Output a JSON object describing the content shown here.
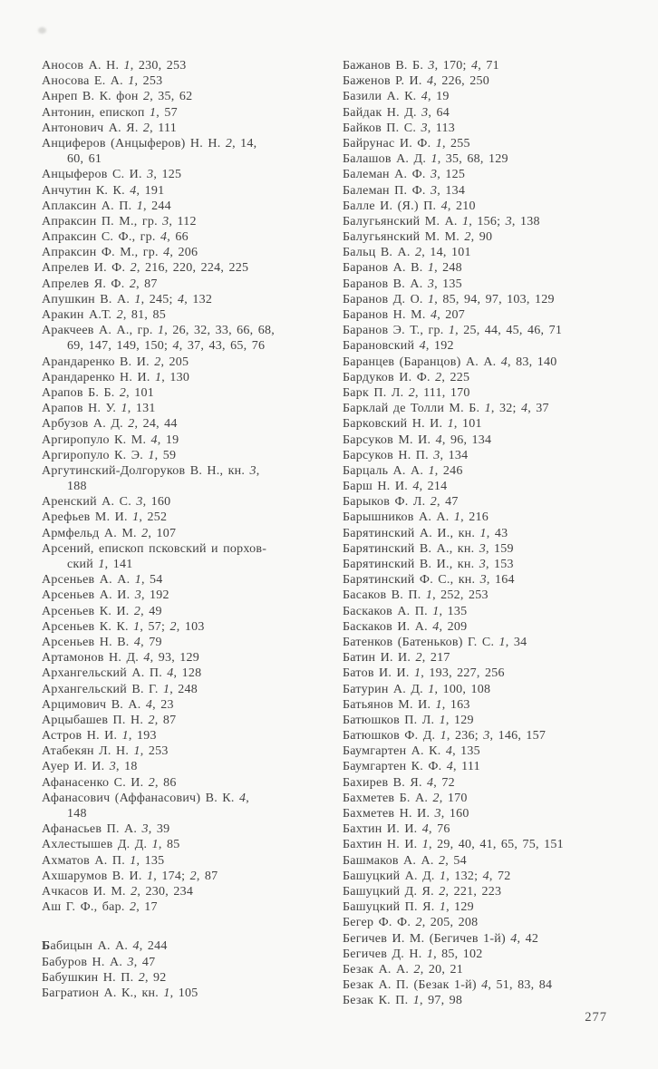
{
  "page": {
    "number": "277",
    "background_color": "#f9f9f7",
    "text_color": "#414141"
  },
  "index": {
    "left_column": [
      "Аносов А. Н. *1*, 230, 253",
      "Аносова Е. А. *1*, 253",
      "Анреп В. К. фон *2*, 35, 62",
      "Антонин, епископ *1*, 57",
      "Антонович А. Я. *2*, 111",
      "Анциферов (Анцыферов) Н. Н. *2*, 14,",
      {
        "t": "60, 61",
        "indent": true
      },
      "Анцыферов С. И. *3*, 125",
      "Анчутин К. К. *4*, 191",
      "Аплаксин А. П. *1*, 244",
      "Апраксин П. М., гр. *3*, 112",
      "Апраксин С. Ф., гр. *4*, 66",
      "Апраксин Ф. М., гр. *4*, 206",
      "Апрелев И. Ф. *2*, 216, 220, 224, 225",
      "Апрелев Я. Ф. *2*, 87",
      "Апушкин В. А. *1*, 245; *4*, 132",
      "Аракин А.Т. *2*, 81, 85",
      "Аракчеев А. А., гр. *1*, 26, 32, 33, 66, 68,",
      {
        "t": "69, 147, 149, 150; *4*, 37, 43, 65, 76",
        "indent": true
      },
      "Арандаренко В. И. *2*, 205",
      "Арандаренко Н. И. *1*, 130",
      "Арапов Б. Б. *2*, 101",
      "Арапов Н. У. *1*, 131",
      "Арбузов А. Д. *2*, 24, 44",
      "Аргиропуло К. М. *4*, 19",
      "Аргиропуло К. Э. *1*, 59",
      "Аргутинский-Долгоруков В. Н., кн. *3*,",
      {
        "t": "188",
        "indent": true
      },
      "Аренский А. С. *3*, 160",
      "Арефьев М. И. *1*, 252",
      "Армфельд А. М. *2*, 107",
      "Арсений, епископ псковский и порхов-",
      {
        "t": "ский *1*, 141",
        "indent": true
      },
      "Арсеньев А. А. *1*, 54",
      "Арсеньев А. И. *3*, 192",
      "Арсеньев К. И. *2*, 49",
      "Арсеньев К. К. *1*, 57; *2*, 103",
      "Арсеньев Н. В. *4*, 79",
      "Артамонов Н. Д. *4*, 93, 129",
      "Архангельский А. П. *4*, 128",
      "Архангельский В. Г. *1*, 248",
      "Арцимович В. А. *4*, 23",
      "Арцыбашев П. Н. *2*, 87",
      "Астров Н. И. *1*, 193",
      "Атабекян Л. Н. *1*, 253",
      "Ауер И. И. *3*, 18",
      "Афанасенко С. И. *2*, 86",
      "Афанасович (Аффанасович) В. К. *4*,",
      {
        "t": "148",
        "indent": true
      },
      "Афанасьев П. А. *3*, 39",
      "Ахлестышев Д. Д. *1*, 85",
      "Ахматов А. П. *1*, 135",
      "Ахшарумов В. И. *1*, 174; *2*, 87",
      "Ачкасов И. М. *2*, 230, 234",
      "Аш Г. Ф., бар. *2*, 17",
      {
        "gap": true
      },
      {
        "t": "Бабицын А. А. *4*, 244",
        "boldFirst": true
      },
      "Бабуров Н. А. *3*, 47",
      "Бабушкин Н. П. *2*, 92",
      "Багратион А. К., кн. *1*, 105"
    ],
    "right_column": [
      "Бажанов В. Б. *3*, 170; *4*, 71",
      "Баженов Р. И. *4*, 226, 250",
      "Базили А. К. *4*, 19",
      "Байдак Н. Д. *3*, 64",
      "Байков П. С. *3*, 113",
      "Байрунас И. Ф. *1*, 255",
      "Балашов А. Д. *1*, 35, 68, 129",
      "Балеман А. Ф. *3*, 125",
      "Балеман П. Ф. *3*, 134",
      "Балле И. (Я.) П. *4*, 210",
      "Балугьянский М. А. *1*, 156; *3*, 138",
      "Балугьянский М. М. *2*, 90",
      "Бальц В. А. *2*, 14, 101",
      "Баранов А. В. *1*, 248",
      "Баранов В. А. *3*, 135",
      "Баранов Д. О. *1*, 85, 94, 97, 103, 129",
      "Баранов Н. М. *4*, 207",
      "Баранов Э. Т., гр. *1*, 25, 44, 45, 46, 71",
      "Барановский *4*, 192",
      "Баранцев (Баранцов) А. А. *4*, 83, 140",
      "Бардуков И. Ф. *2*, 225",
      "Барк П. Л. *2*, 111, 170",
      "Барклай де Толли М. Б. *1*, 32; *4*, 37",
      "Барковский Н. И. *1*, 101",
      "Барсуков М. И. *4*, 96, 134",
      "Барсуков Н. П. *3*, 134",
      "Барцаль А. А. *1*, 246",
      "Барш Н. И. *4*, 214",
      "Барыков Ф. Л. *2*, 47",
      "Барышников А. А. *1*, 216",
      "Барятинский А. И., кн. *1*, 43",
      "Барятинский В. А., кн. *3*, 159",
      "Барятинский В. И., кн. *3*, 153",
      "Барятинский Ф. С., кн. *3*, 164",
      "Басаков В. П. *1*, 252, 253",
      "Баскаков А. П. *1*, 135",
      "Баскаков И. А. *4*, 209",
      "Батенков (Батеньков) Г. С. *1*, 34",
      "Батин И. И. *2*, 217",
      "Батов И. И. *1*, 193, 227, 256",
      "Батурин А. Д. *1*, 100, 108",
      "Батьянов М. И. *1*, 163",
      "Батюшков П. Л. *1*, 129",
      "Батюшков Ф. Д. *1*, 236; *3*, 146, 157",
      "Баумгартен А. К. *4*, 135",
      "Баумгартен К. Ф. *4*, 111",
      "Бахирев В. Я. *4*, 72",
      "Бахметев Б. А. *2*, 170",
      "Бахметев Н. И. *3*, 160",
      "Бахтин И. И. *4*, 76",
      "Бахтин Н. И. *1*, 29, 40, 41, 65, 75, 151",
      "Башмаков А. А. *2*, 54",
      "Башуцкий А. Д. *1*, 132; *4*, 72",
      "Башуцкий Д. Я. *2*, 221, 223",
      "Башуцкий П. Я. *1*, 129",
      "Бегер Ф. Ф. *2*, 205, 208",
      "Бегичев И. М. (Бегичев 1-й) *4*, 42",
      "Бегичев Д. Н. *1*, 85, 102",
      "Безак А. А. *2*, 20, 21",
      "Безак А. П. (Безак 1-й) *4*, 51, 83, 84",
      "Безак К. П. *1*, 97, 98"
    ]
  }
}
